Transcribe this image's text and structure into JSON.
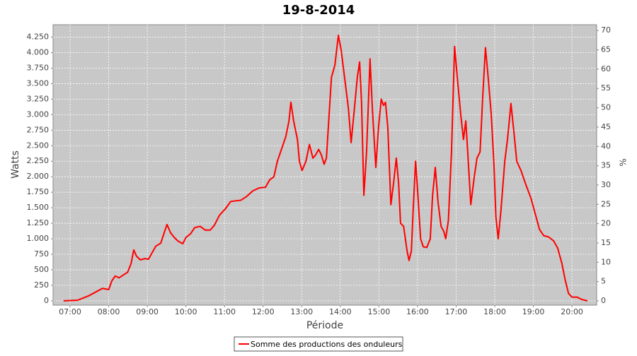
{
  "chart_data": {
    "type": "line",
    "title": "19-8-2014",
    "xlabel": "Période",
    "ylabel": "Watts",
    "y2label": "%",
    "x": [
      6.83,
      7.2,
      7.48,
      7.66,
      7.84,
      8.0,
      8.08,
      8.17,
      8.27,
      8.39,
      8.49,
      8.58,
      8.65,
      8.72,
      8.82,
      8.94,
      9.03,
      9.13,
      9.22,
      9.35,
      9.44,
      9.51,
      9.6,
      9.7,
      9.8,
      9.92,
      10.0,
      10.12,
      10.23,
      10.37,
      10.5,
      10.63,
      10.74,
      10.87,
      11.02,
      11.16,
      11.27,
      11.42,
      11.57,
      11.73,
      11.9,
      12.06,
      12.17,
      12.28,
      12.37,
      12.48,
      12.59,
      12.67,
      12.72,
      12.79,
      12.89,
      12.94,
      13.01,
      13.11,
      13.2,
      13.29,
      13.36,
      13.44,
      13.51,
      13.58,
      13.64,
      13.71,
      13.77,
      13.86,
      13.95,
      14.02,
      14.11,
      14.21,
      14.28,
      14.35,
      14.44,
      14.5,
      14.55,
      14.61,
      14.68,
      14.77,
      14.83,
      14.92,
      14.99,
      15.06,
      15.12,
      15.17,
      15.23,
      15.31,
      15.38,
      15.45,
      15.51,
      15.56,
      15.64,
      15.73,
      15.78,
      15.84,
      15.89,
      15.95,
      16.0,
      16.08,
      16.15,
      16.24,
      16.33,
      16.39,
      16.46,
      16.53,
      16.61,
      16.68,
      16.73,
      16.8,
      16.88,
      16.96,
      17.03,
      17.12,
      17.19,
      17.25,
      17.3,
      17.38,
      17.47,
      17.54,
      17.62,
      17.69,
      17.76,
      17.83,
      17.91,
      17.98,
      18.03,
      18.09,
      18.16,
      18.26,
      18.33,
      18.42,
      18.5,
      18.57,
      18.68,
      18.79,
      18.94,
      19.05,
      19.16,
      19.27,
      19.39,
      19.52,
      19.63,
      19.74,
      19.82,
      19.91,
      20.0,
      20.13,
      20.26,
      20.4
    ],
    "series": [
      {
        "name": "Somme des productions des onduleurs",
        "color": "#ff0000",
        "values": [
          0,
          10,
          80,
          140,
          200,
          180,
          320,
          400,
          370,
          420,
          460,
          600,
          820,
          720,
          660,
          680,
          670,
          780,
          880,
          930,
          1100,
          1230,
          1100,
          1020,
          960,
          920,
          1020,
          1080,
          1180,
          1200,
          1140,
          1140,
          1220,
          1380,
          1480,
          1600,
          1610,
          1620,
          1680,
          1770,
          1820,
          1830,
          1950,
          2000,
          2250,
          2450,
          2650,
          2900,
          3200,
          2900,
          2600,
          2250,
          2100,
          2250,
          2520,
          2300,
          2350,
          2440,
          2350,
          2200,
          2300,
          3000,
          3600,
          3800,
          4280,
          4050,
          3600,
          3100,
          2550,
          3000,
          3600,
          3850,
          3200,
          1700,
          2400,
          3900,
          3100,
          2150,
          2800,
          3250,
          3150,
          3200,
          2800,
          1550,
          1900,
          2300,
          1900,
          1250,
          1200,
          800,
          650,
          800,
          1500,
          2250,
          1800,
          1000,
          870,
          860,
          1000,
          1700,
          2150,
          1600,
          1200,
          1120,
          1000,
          1300,
          2400,
          4100,
          3600,
          3000,
          2600,
          2900,
          2400,
          1550,
          2000,
          2300,
          2400,
          3300,
          4080,
          3600,
          3000,
          2200,
          1350,
          1000,
          1450,
          2250,
          2600,
          3180,
          2700,
          2250,
          2100,
          1900,
          1650,
          1400,
          1150,
          1050,
          1030,
          970,
          850,
          600,
          350,
          120,
          60,
          60,
          20,
          0
        ]
      }
    ],
    "xlim": [
      6.56,
      20.64
    ],
    "xticks": [
      {
        "value": 7,
        "label": "07:00"
      },
      {
        "value": 8,
        "label": "08:00"
      },
      {
        "value": 9,
        "label": "09:00"
      },
      {
        "value": 10,
        "label": "10:00"
      },
      {
        "value": 11,
        "label": "11:00"
      },
      {
        "value": 12,
        "label": "12:00"
      },
      {
        "value": 13,
        "label": "13:00"
      },
      {
        "value": 14,
        "label": "14:00"
      },
      {
        "value": 15,
        "label": "15:00"
      },
      {
        "value": 16,
        "label": "16:00"
      },
      {
        "value": 17,
        "label": "17:00"
      },
      {
        "value": 18,
        "label": "18:00"
      },
      {
        "value": 19,
        "label": "19:00"
      },
      {
        "value": 20,
        "label": "20:00"
      }
    ],
    "ylim": [
      -70,
      4450
    ],
    "yticks": [
      0,
      250,
      500,
      750,
      {
        "value": 1000,
        "label": "1.000"
      },
      {
        "value": 1250,
        "label": "1.250"
      },
      {
        "value": 1500,
        "label": "1.500"
      },
      {
        "value": 1750,
        "label": "1.750"
      },
      {
        "value": 2000,
        "label": "2.000"
      },
      {
        "value": 2250,
        "label": "2.250"
      },
      {
        "value": 2500,
        "label": "2.500"
      },
      {
        "value": 2750,
        "label": "2.750"
      },
      {
        "value": 3000,
        "label": "3.000"
      },
      {
        "value": 3250,
        "label": "3.250"
      },
      {
        "value": 3500,
        "label": "3.500"
      },
      {
        "value": 3750,
        "label": "3.750"
      },
      {
        "value": 4000,
        "label": "4.000"
      },
      {
        "value": 4250,
        "label": "4.250"
      }
    ],
    "y2lim": [
      -1.1,
      71.5
    ],
    "y2ticks": [
      0,
      5,
      10,
      15,
      20,
      25,
      30,
      35,
      40,
      45,
      50,
      55,
      60,
      65,
      70
    ],
    "grid": true
  }
}
